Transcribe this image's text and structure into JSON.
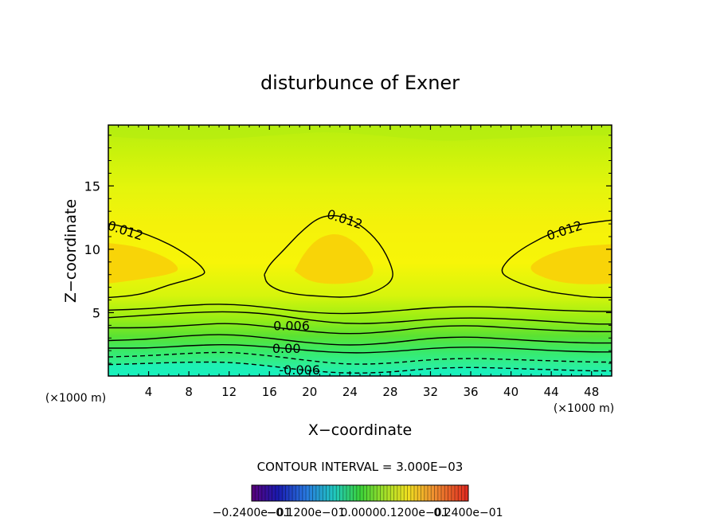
{
  "chart_data": {
    "type": "heatmap",
    "title": "disturbunce of Exner",
    "xlabel": "X−coordinate",
    "ylabel": "Z−coordinate",
    "x_unit_left": "(×1000 m)",
    "x_unit_right": "(×1000 m)",
    "xlim": [
      0,
      50
    ],
    "ylim": [
      0,
      19.8
    ],
    "x_ticks": [
      4,
      8,
      12,
      16,
      20,
      24,
      28,
      32,
      36,
      40,
      44,
      48
    ],
    "x_tick_labels": [
      "4",
      "8",
      "12",
      "16",
      "20",
      "24",
      "28",
      "32",
      "36",
      "40",
      "44",
      "48"
    ],
    "y_ticks": [
      5,
      10,
      15
    ],
    "y_tick_labels": [
      "5",
      "10",
      "15"
    ],
    "contour_interval_text": "CONTOUR INTERVAL = 3.000E−03",
    "contour_interval": 0.003,
    "colorbar": {
      "range": [
        -0.024,
        0.024
      ],
      "tick_labels": [
        "−0.2400e−01",
        "−0.1200e−01",
        "0.0000",
        "0.1200e−01",
        "0.2400e−01"
      ]
    },
    "contours": [
      {
        "level": 0.012,
        "label": "0.012",
        "style": "solid",
        "paths": [
          [
            [
              0,
              6.2
            ],
            [
              2,
              6.3
            ],
            [
              4,
              6.6
            ],
            [
              6,
              7.2
            ],
            [
              8,
              7.6
            ],
            [
              9.5,
              8.0
            ],
            [
              9.6,
              8.3
            ],
            [
              8.8,
              9.0
            ],
            [
              7,
              10.0
            ],
            [
              5,
              10.8
            ],
            [
              3,
              11.4
            ],
            [
              1,
              11.9
            ],
            [
              0,
              12.0
            ]
          ],
          [
            [
              15.5,
              8.0
            ],
            [
              15.7,
              7.3
            ],
            [
              17,
              6.7
            ],
            [
              19,
              6.4
            ],
            [
              21,
              6.3
            ],
            [
              23,
              6.2
            ],
            [
              25,
              6.3
            ],
            [
              27,
              6.8
            ],
            [
              28.3,
              7.6
            ],
            [
              28.2,
              8.6
            ],
            [
              27,
              10.5
            ],
            [
              25,
              12.0
            ],
            [
              23,
              12.7
            ],
            [
              21,
              12.6
            ],
            [
              19,
              11.3
            ],
            [
              17.5,
              10.0
            ],
            [
              16,
              8.8
            ],
            [
              15.5,
              8.0
            ]
          ],
          [
            [
              50,
              6.2
            ],
            [
              48,
              6.2
            ],
            [
              46,
              6.4
            ],
            [
              44,
              6.6
            ],
            [
              42,
              7.0
            ],
            [
              40,
              7.6
            ],
            [
              38.9,
              8.2
            ],
            [
              39.6,
              9.1
            ],
            [
              41,
              10.0
            ],
            [
              43,
              10.9
            ],
            [
              45,
              11.6
            ],
            [
              47,
              12.0
            ],
            [
              49,
              12.2
            ],
            [
              50,
              12.3
            ]
          ]
        ]
      },
      {
        "level": 0.009,
        "label": "",
        "style": "solid",
        "paths": [
          [
            [
              0,
              5.2
            ],
            [
              4,
              5.3
            ],
            [
              8,
              5.6
            ],
            [
              12,
              5.7
            ],
            [
              16,
              5.4
            ],
            [
              20,
              5.0
            ],
            [
              24,
              4.9
            ],
            [
              28,
              5.1
            ],
            [
              32,
              5.4
            ],
            [
              36,
              5.5
            ],
            [
              40,
              5.4
            ],
            [
              44,
              5.2
            ],
            [
              48,
              5.1
            ],
            [
              50,
              5.1
            ]
          ]
        ]
      },
      {
        "level": 0.006,
        "label": "0.006",
        "style": "solid",
        "paths": [
          [
            [
              0,
              4.6
            ],
            [
              4,
              4.8
            ],
            [
              8,
              5.0
            ],
            [
              12,
              5.1
            ],
            [
              16,
              4.9
            ],
            [
              20,
              4.4
            ],
            [
              24,
              4.1
            ],
            [
              28,
              4.2
            ],
            [
              32,
              4.5
            ],
            [
              36,
              4.6
            ],
            [
              40,
              4.5
            ],
            [
              44,
              4.3
            ],
            [
              48,
              4.1
            ],
            [
              50,
              4.1
            ]
          ]
        ]
      },
      {
        "level": 0.003,
        "label": "",
        "style": "solid",
        "paths": [
          [
            [
              0,
              3.8
            ],
            [
              4,
              3.8
            ],
            [
              8,
              4.0
            ],
            [
              12,
              4.2
            ],
            [
              16,
              3.9
            ],
            [
              20,
              3.5
            ],
            [
              24,
              3.3
            ],
            [
              28,
              3.5
            ],
            [
              32,
              3.9
            ],
            [
              36,
              4.0
            ],
            [
              40,
              3.8
            ],
            [
              44,
              3.6
            ],
            [
              48,
              3.5
            ],
            [
              50,
              3.5
            ]
          ]
        ]
      },
      {
        "level": 0.0,
        "label": "0.00",
        "style": "solid",
        "paths": [
          [
            [
              0,
              2.8
            ],
            [
              4,
              2.9
            ],
            [
              8,
              3.2
            ],
            [
              12,
              3.3
            ],
            [
              16,
              3.0
            ],
            [
              20,
              2.6
            ],
            [
              24,
              2.4
            ],
            [
              28,
              2.6
            ],
            [
              32,
              3.0
            ],
            [
              36,
              3.1
            ],
            [
              40,
              2.9
            ],
            [
              44,
              2.7
            ],
            [
              48,
              2.6
            ],
            [
              50,
              2.6
            ]
          ]
        ]
      },
      {
        "level": -0.003,
        "label": "",
        "style": "solid",
        "paths": [
          [
            [
              0,
              2.2
            ],
            [
              4,
              2.2
            ],
            [
              8,
              2.4
            ],
            [
              12,
              2.5
            ],
            [
              16,
              2.3
            ],
            [
              20,
              2.0
            ],
            [
              24,
              1.8
            ],
            [
              28,
              1.9
            ],
            [
              32,
              2.2
            ],
            [
              36,
              2.3
            ],
            [
              40,
              2.2
            ],
            [
              44,
              2.0
            ],
            [
              48,
              1.9
            ],
            [
              50,
              1.9
            ]
          ]
        ]
      },
      {
        "level": -0.006,
        "label": "-0.006",
        "style": "dashed",
        "paths": [
          [
            [
              0,
              1.5
            ],
            [
              4,
              1.6
            ],
            [
              8,
              1.8
            ],
            [
              12,
              1.9
            ],
            [
              16,
              1.6
            ],
            [
              20,
              1.2
            ],
            [
              24,
              0.9
            ],
            [
              28,
              1.0
            ],
            [
              32,
              1.3
            ],
            [
              36,
              1.4
            ],
            [
              40,
              1.3
            ],
            [
              44,
              1.2
            ],
            [
              48,
              1.1
            ],
            [
              50,
              1.1
            ]
          ]
        ]
      },
      {
        "level": -0.009,
        "label": "",
        "style": "dashed",
        "paths": [
          [
            [
              0,
              0.9
            ],
            [
              4,
              1.0
            ],
            [
              8,
              1.1
            ],
            [
              12,
              1.1
            ],
            [
              16,
              0.8
            ],
            [
              20,
              0.4
            ],
            [
              24,
              0.2
            ],
            [
              28,
              0.3
            ],
            [
              32,
              0.6
            ],
            [
              36,
              0.7
            ],
            [
              40,
              0.6
            ],
            [
              44,
              0.5
            ],
            [
              48,
              0.4
            ],
            [
              50,
              0.4
            ]
          ]
        ]
      },
      {
        "level": 0.015,
        "label": "",
        "style": "none",
        "paths": [
          [
            [
              0,
              7.3
            ],
            [
              3,
              7.6
            ],
            [
              6,
              8.0
            ],
            [
              7.2,
              8.4
            ],
            [
              6,
              9.3
            ],
            [
              3,
              10.2
            ],
            [
              0,
              10.5
            ]
          ],
          [
            [
              18.5,
              8.3
            ],
            [
              20,
              7.4
            ],
            [
              23,
              7.2
            ],
            [
              26,
              7.6
            ],
            [
              26.5,
              8.5
            ],
            [
              25,
              10.3
            ],
            [
              23,
              11.3
            ],
            [
              21,
              11.0
            ],
            [
              19.5,
              9.8
            ],
            [
              18.5,
              8.3
            ]
          ],
          [
            [
              50,
              7.3
            ],
            [
              47,
              7.2
            ],
            [
              44,
              7.5
            ],
            [
              41.5,
              8.4
            ],
            [
              43,
              9.4
            ],
            [
              46,
              10.2
            ],
            [
              50,
              10.4
            ]
          ]
        ]
      },
      {
        "level": 0.0075,
        "label": "",
        "style": "none",
        "paths": [
          [
            [
              0,
              18.9
            ],
            [
              6,
              18.6
            ],
            [
              12,
              18.7
            ],
            [
              18,
              19.1
            ],
            [
              22,
              19.3
            ],
            [
              28,
              18.9
            ],
            [
              33,
              18.5
            ],
            [
              38,
              18.7
            ],
            [
              44,
              18.9
            ],
            [
              50,
              19.0
            ]
          ]
        ]
      }
    ]
  }
}
